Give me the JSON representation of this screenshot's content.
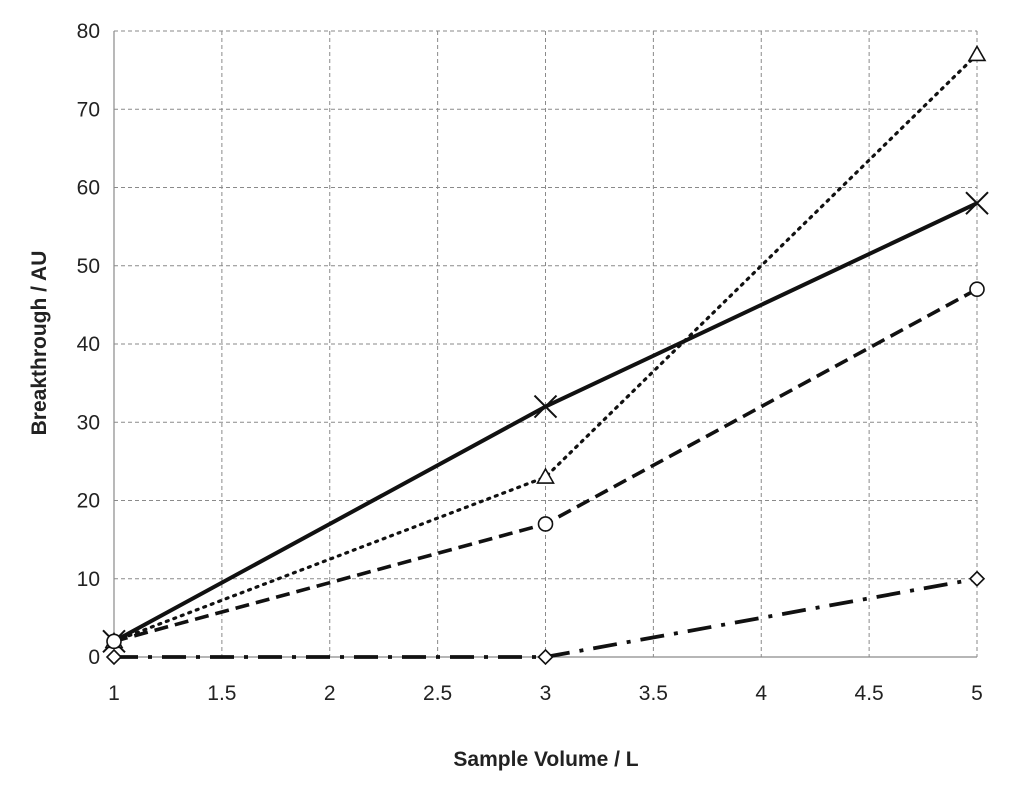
{
  "chart_data": {
    "type": "line",
    "xlabel": "Sample Volume  / L",
    "ylabel": "Breakthrough / AU",
    "xlim": [
      1,
      5
    ],
    "ylim": [
      0,
      80
    ],
    "xticks": [
      "1",
      "1.5",
      "2",
      "2.5",
      "3",
      "3.5",
      "4",
      "4.5",
      "5"
    ],
    "yticks": [
      "0",
      "10",
      "20",
      "30",
      "40",
      "50",
      "60",
      "70",
      "80"
    ],
    "grid": true,
    "x": [
      1,
      3,
      5
    ],
    "series": [
      {
        "marker": "cross",
        "linestyle": "solid",
        "color": "#111111",
        "values": [
          2,
          32,
          58
        ]
      },
      {
        "marker": "triangle",
        "linestyle": "dotted",
        "color": "#111111",
        "values": [
          2,
          23,
          77
        ]
      },
      {
        "marker": "circle",
        "linestyle": "dashed",
        "color": "#111111",
        "values": [
          2,
          17,
          47
        ]
      },
      {
        "marker": "diamond",
        "linestyle": "dashdot",
        "color": "#111111",
        "values": [
          0,
          0,
          10
        ]
      }
    ]
  }
}
